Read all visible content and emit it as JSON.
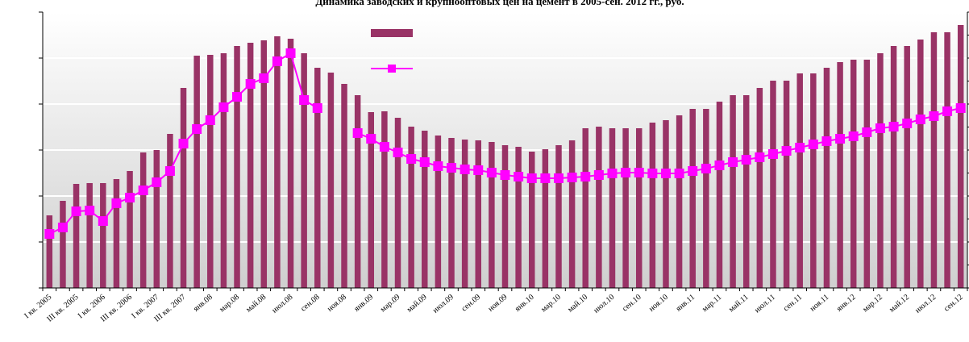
{
  "chart_data": {
    "type": "bar-line",
    "title": "Динамика заводских и крупнооптовых цен на цемент в 2005-сен. 2012 гг., руб.",
    "categories": [
      "I кв. 2005",
      null,
      "III кв. 2005",
      null,
      "I кв. 2006",
      null,
      "III кв. 2006",
      null,
      "I кв. 2007",
      null,
      "III кв. 2007",
      null,
      "янв.08",
      null,
      "мар.08",
      null,
      "май.08",
      null,
      "июл.08",
      null,
      "сен.08",
      null,
      "ноя.08",
      null,
      "янв.09",
      null,
      "мар.09",
      null,
      "май.09",
      null,
      "июл.09",
      null,
      "сен.09",
      null,
      "ноя.09",
      null,
      "янв.10",
      null,
      "мар.10",
      null,
      "май.10",
      null,
      "июл.10",
      null,
      "сен.10",
      null,
      "ноя.10",
      null,
      "янв.11",
      null,
      "мар.11",
      null,
      "май.11",
      null,
      "июл.11",
      null,
      "сен.11",
      null,
      "ноя.11",
      null,
      "янв.12",
      null,
      "мар.12",
      null,
      "май.12",
      null,
      "июл.12",
      null,
      "сен.12"
    ],
    "series": [
      {
        "type": "bar",
        "color": "#993366",
        "values": [
          90,
          108,
          129,
          130,
          130,
          135,
          145,
          168,
          171,
          191,
          248,
          288,
          289,
          291,
          300,
          304,
          307,
          312,
          309,
          291,
          273,
          267,
          253,
          239,
          218,
          219,
          211,
          200,
          195,
          189,
          186,
          184,
          183,
          181,
          177,
          175,
          169,
          172,
          177,
          183,
          198,
          200,
          198,
          198,
          198,
          205,
          208,
          214,
          222,
          222,
          231,
          239,
          239,
          248,
          257,
          257,
          266,
          266,
          273,
          280,
          283,
          283,
          291,
          300,
          300,
          308,
          317,
          317,
          326
        ]
      },
      {
        "type": "line",
        "axis": "y2",
        "color": "#ff00ff",
        "values": [
          67,
          75,
          95,
          96,
          83,
          105,
          112,
          121,
          131,
          145,
          179,
          197,
          208,
          224,
          237,
          253,
          260,
          281,
          291,
          233,
          223,
          null,
          null,
          192,
          185,
          175,
          168,
          160,
          156,
          151,
          149,
          147,
          146,
          143,
          140,
          138,
          136,
          136,
          136,
          137,
          138,
          140,
          142,
          143,
          143,
          142,
          142,
          142,
          145,
          148,
          152,
          156,
          159,
          162,
          166,
          170,
          174,
          178,
          182,
          185,
          188,
          193,
          198,
          200,
          204,
          209,
          213,
          219,
          223
        ]
      }
    ],
    "ylim": [
      0,
      342
    ],
    "yticks": [
      0,
      57,
      114,
      171,
      228,
      285,
      342
    ],
    "y2lim": [
      0,
      342
    ],
    "y2ticks": [
      0,
      28.5,
      57,
      85.5,
      114,
      142.5,
      171,
      199.5,
      228,
      256.5,
      285,
      313.5,
      342
    ],
    "grid": true
  }
}
